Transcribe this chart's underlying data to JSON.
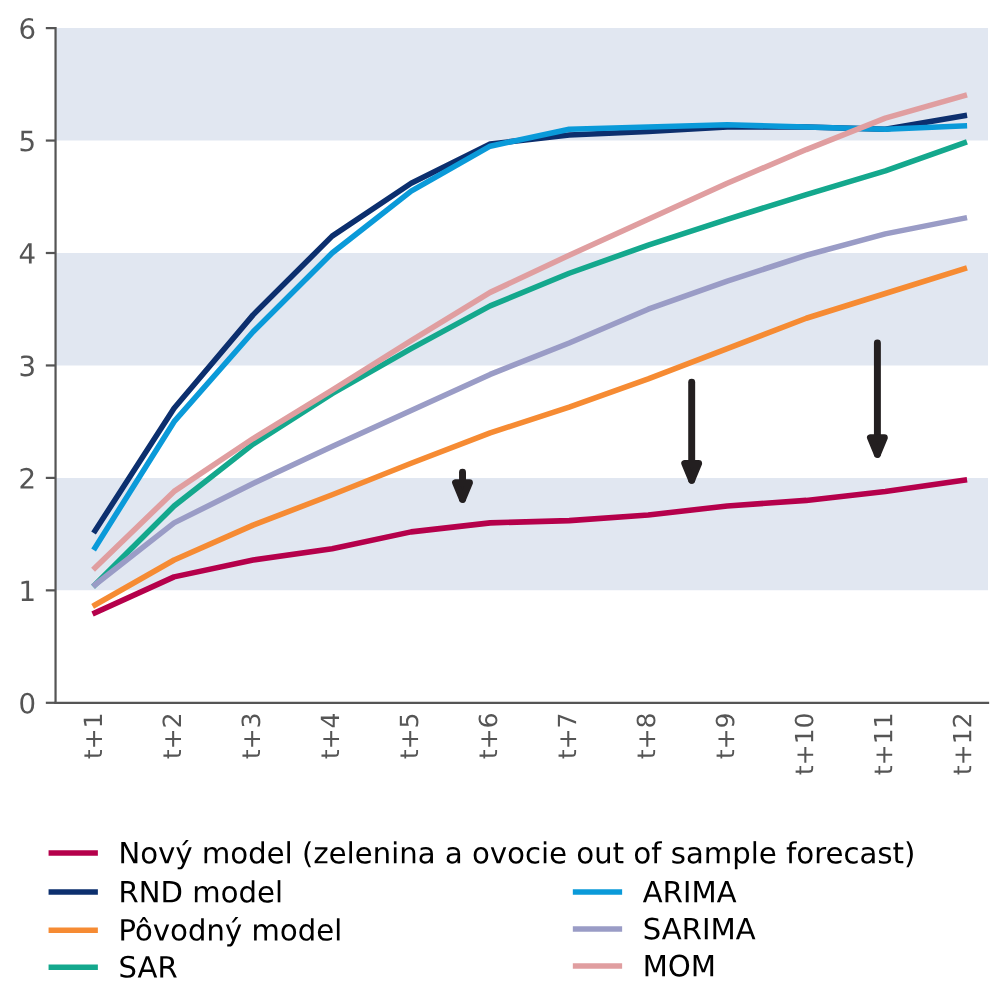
{
  "chart_data": {
    "type": "line",
    "categories": [
      "t+1",
      "t+2",
      "t+3",
      "t+4",
      "t+5",
      "t+6",
      "t+7",
      "t+8",
      "t+9",
      "t+10",
      "t+11",
      "t+12"
    ],
    "series": [
      {
        "name": "Nový model (zelenina a ovocie out of sample forecast)",
        "color": "#b5004b",
        "values": [
          0.8,
          1.12,
          1.27,
          1.37,
          1.52,
          1.6,
          1.62,
          1.67,
          1.75,
          1.8,
          1.88,
          1.98
        ]
      },
      {
        "name": "RND model",
        "color": "#0c2f6e",
        "values": [
          1.53,
          2.62,
          3.45,
          4.15,
          4.62,
          4.97,
          5.05,
          5.08,
          5.12,
          5.12,
          5.1,
          5.22
        ]
      },
      {
        "name": "Pôvodný model",
        "color": "#f68b33",
        "values": [
          0.87,
          1.27,
          1.58,
          1.85,
          2.13,
          2.4,
          2.63,
          2.88,
          3.15,
          3.42,
          3.64,
          3.86
        ]
      },
      {
        "name": "SAR",
        "color": "#14a88d",
        "values": [
          1.05,
          1.75,
          2.3,
          2.75,
          3.15,
          3.53,
          3.82,
          4.07,
          4.3,
          4.52,
          4.73,
          4.98
        ]
      },
      {
        "name": "ARIMA",
        "color": "#0a9ad9",
        "values": [
          1.38,
          2.5,
          3.3,
          4.0,
          4.55,
          4.95,
          5.1,
          5.12,
          5.14,
          5.12,
          5.1,
          5.13
        ]
      },
      {
        "name": "SARIMA",
        "color": "#9a9cc6",
        "values": [
          1.05,
          1.6,
          1.95,
          2.28,
          2.6,
          2.92,
          3.2,
          3.5,
          3.75,
          3.98,
          4.17,
          4.31
        ]
      },
      {
        "name": "MOM",
        "color": "#e09ea0",
        "values": [
          1.2,
          1.88,
          2.35,
          2.78,
          3.22,
          3.65,
          3.98,
          4.3,
          4.62,
          4.92,
          5.2,
          5.4
        ]
      }
    ],
    "ylim": [
      0,
      6
    ],
    "yticks": [
      0,
      1,
      2,
      3,
      4,
      5,
      6
    ],
    "bands": [
      {
        "axis": "y",
        "from": 1,
        "to": 2,
        "color": "#e1e7f1"
      },
      {
        "axis": "y",
        "from": 3,
        "to": 4,
        "color": "#e1e7f1"
      },
      {
        "axis": "y",
        "from": 5,
        "to": 6,
        "color": "#e1e7f1"
      }
    ],
    "grid": false,
    "legend": "bottom",
    "marker": "none",
    "line_style": "solid"
  }
}
